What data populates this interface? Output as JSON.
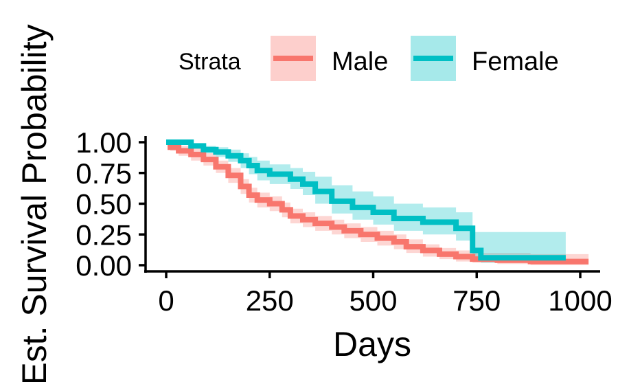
{
  "chart_data": {
    "type": "line",
    "subtype": "kaplan-meier step curves with confidence bands",
    "xlabel": "Days",
    "ylabel": "Est. Survival Probability",
    "xlim": [
      0,
      1000
    ],
    "ylim": [
      0,
      1
    ],
    "x_ticks": [
      0,
      250,
      500,
      750,
      1000
    ],
    "x_tick_labels": [
      "0",
      "250",
      "500",
      "750",
      "1000"
    ],
    "y_ticks": [
      0,
      0.25,
      0.5,
      0.75,
      1.0
    ],
    "y_tick_labels": [
      "0.00",
      "0.25",
      "0.50",
      "0.75",
      "1.00"
    ],
    "grid": false,
    "legend": {
      "title": "Strata",
      "position": "top",
      "entries": [
        "Male",
        "Female"
      ]
    },
    "series": [
      {
        "name": "Male",
        "color": "#F8766D",
        "band_color": "#F8766D",
        "x": [
          0,
          10,
          30,
          60,
          90,
          120,
          150,
          180,
          200,
          220,
          250,
          280,
          300,
          330,
          360,
          400,
          430,
          470,
          510,
          550,
          580,
          620,
          660,
          700,
          740,
          800,
          880,
          1020
        ],
        "y": [
          1.0,
          0.96,
          0.93,
          0.9,
          0.86,
          0.8,
          0.73,
          0.64,
          0.57,
          0.53,
          0.5,
          0.45,
          0.4,
          0.37,
          0.34,
          0.31,
          0.28,
          0.25,
          0.22,
          0.19,
          0.15,
          0.12,
          0.09,
          0.07,
          0.05,
          0.04,
          0.03,
          0.03
        ],
        "lower": [
          1.0,
          0.93,
          0.89,
          0.85,
          0.81,
          0.75,
          0.67,
          0.58,
          0.51,
          0.47,
          0.44,
          0.39,
          0.34,
          0.31,
          0.28,
          0.25,
          0.22,
          0.19,
          0.16,
          0.13,
          0.1,
          0.07,
          0.05,
          0.03,
          0.02,
          0.01,
          0.0,
          0.0
        ],
        "upper": [
          1.0,
          0.99,
          0.97,
          0.95,
          0.91,
          0.85,
          0.79,
          0.7,
          0.63,
          0.59,
          0.56,
          0.51,
          0.46,
          0.43,
          0.4,
          0.37,
          0.34,
          0.31,
          0.28,
          0.25,
          0.21,
          0.17,
          0.14,
          0.12,
          0.1,
          0.1,
          0.09,
          0.09
        ]
      },
      {
        "name": "Female",
        "color": "#00BFC4",
        "band_color": "#00BFC4",
        "x": [
          0,
          60,
          90,
          120,
          150,
          180,
          200,
          220,
          250,
          300,
          330,
          360,
          400,
          450,
          500,
          550,
          620,
          700,
          740,
          760,
          800,
          880,
          965
        ],
        "y": [
          1.0,
          0.97,
          0.94,
          0.92,
          0.89,
          0.85,
          0.81,
          0.77,
          0.74,
          0.7,
          0.66,
          0.6,
          0.52,
          0.47,
          0.43,
          0.38,
          0.35,
          0.3,
          0.12,
          0.06,
          0.06,
          0.06,
          0.06
        ],
        "lower": [
          1.0,
          0.95,
          0.91,
          0.88,
          0.84,
          0.79,
          0.74,
          0.69,
          0.66,
          0.62,
          0.57,
          0.5,
          0.42,
          0.37,
          0.33,
          0.28,
          0.25,
          0.2,
          0.04,
          0.02,
          0.02,
          0.02,
          0.02
        ],
        "upper": [
          1.0,
          0.99,
          0.97,
          0.96,
          0.94,
          0.91,
          0.88,
          0.85,
          0.82,
          0.79,
          0.76,
          0.72,
          0.65,
          0.6,
          0.56,
          0.5,
          0.47,
          0.43,
          0.27,
          0.27,
          0.27,
          0.27,
          0.27
        ]
      }
    ]
  }
}
